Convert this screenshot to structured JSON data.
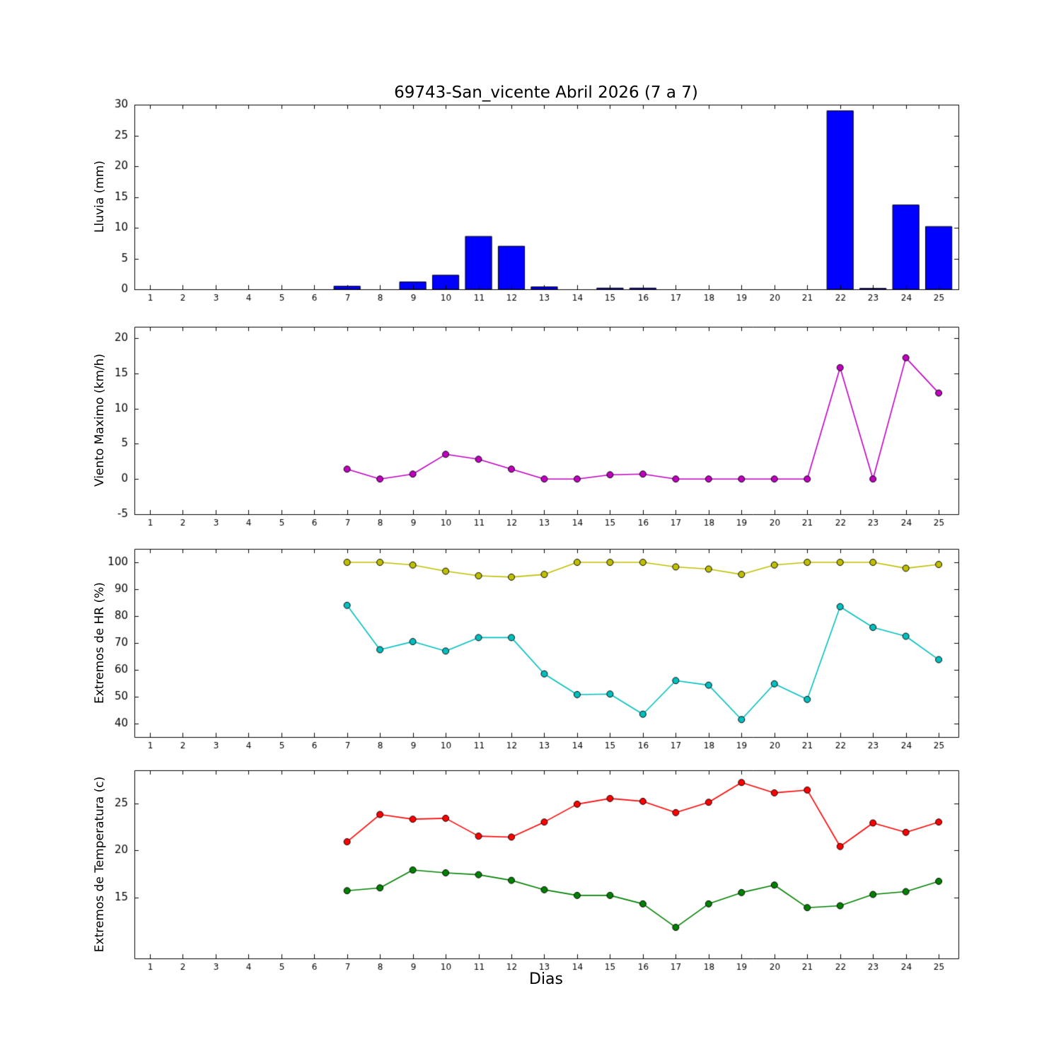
{
  "figure": {
    "title": "69743-San_vicente Abril 2026  (7 a 7)",
    "xlabel": "Dias"
  },
  "chart_data": [
    {
      "name": "lluvia",
      "type": "bar",
      "ylabel": "Lluvia (mm)",
      "xlim": [
        0.53,
        25.6
      ],
      "ylim": [
        0,
        30
      ],
      "xticks": [
        1,
        2,
        3,
        4,
        5,
        6,
        7,
        8,
        9,
        10,
        11,
        12,
        13,
        14,
        15,
        16,
        17,
        18,
        19,
        20,
        21,
        22,
        23,
        24,
        25
      ],
      "yticks": [
        0,
        5,
        10,
        15,
        20,
        25,
        30
      ],
      "x": [
        7,
        8,
        9,
        10,
        11,
        12,
        13,
        14,
        15,
        16,
        17,
        18,
        19,
        20,
        21,
        22,
        23,
        24,
        25
      ],
      "series": [
        {
          "name": "lluvia_mm",
          "color": "#0000ff",
          "values": [
            0.5,
            0,
            1.2,
            2.3,
            8.6,
            7.0,
            0.4,
            0,
            0.2,
            0.2,
            0,
            0,
            0,
            0,
            0,
            29.0,
            0.15,
            13.7,
            10.2
          ]
        }
      ]
    },
    {
      "name": "viento",
      "type": "line",
      "ylabel": "Viento Maximo (km/h)",
      "xlim": [
        0.53,
        25.6
      ],
      "ylim": [
        -5,
        21.6
      ],
      "xticks": [
        1,
        2,
        3,
        4,
        5,
        6,
        7,
        8,
        9,
        10,
        11,
        12,
        13,
        14,
        15,
        16,
        17,
        18,
        19,
        20,
        21,
        22,
        23,
        24,
        25
      ],
      "yticks": [
        -5,
        0,
        5,
        10,
        15,
        20
      ],
      "x": [
        7,
        8,
        9,
        10,
        11,
        12,
        13,
        14,
        15,
        16,
        17,
        18,
        19,
        20,
        21,
        22,
        23,
        24,
        25
      ],
      "series": [
        {
          "name": "viento_maximo",
          "color": "#bf00bf",
          "values": [
            1.4,
            0,
            0.7,
            3.5,
            2.8,
            1.4,
            0,
            0,
            0.6,
            0.7,
            0,
            0,
            0,
            0,
            0,
            15.8,
            0,
            17.2,
            12.2
          ]
        }
      ]
    },
    {
      "name": "hr",
      "type": "line",
      "ylabel": "Extremos de HR (%)",
      "xlim": [
        0.53,
        25.6
      ],
      "ylim": [
        35,
        105
      ],
      "xticks": [
        1,
        2,
        3,
        4,
        5,
        6,
        7,
        8,
        9,
        10,
        11,
        12,
        13,
        14,
        15,
        16,
        17,
        18,
        19,
        20,
        21,
        22,
        23,
        24,
        25
      ],
      "yticks": [
        40,
        50,
        60,
        70,
        80,
        90,
        100
      ],
      "x": [
        7,
        8,
        9,
        10,
        11,
        12,
        13,
        14,
        15,
        16,
        17,
        18,
        19,
        20,
        21,
        22,
        23,
        24,
        25
      ],
      "series": [
        {
          "name": "hr_maxima",
          "color": "#bfbf00",
          "values": [
            100,
            100,
            99,
            96.7,
            95,
            94.5,
            95.5,
            100,
            100,
            100,
            98.3,
            97.5,
            95.5,
            99,
            100,
            100,
            100,
            97.8,
            99.2
          ]
        },
        {
          "name": "hr_minima",
          "color": "#00bfbf",
          "values": [
            84,
            67.5,
            70.5,
            67,
            72,
            72,
            58.5,
            50.8,
            51,
            43.5,
            56,
            54.3,
            41.5,
            54.8,
            49,
            83.5,
            75.8,
            72.5,
            63.8
          ]
        }
      ]
    },
    {
      "name": "temperatura",
      "type": "line",
      "ylabel": "Extremos de Temperatura (c)",
      "xlim": [
        0.53,
        25.6
      ],
      "ylim": [
        8.5,
        28.5
      ],
      "xticks": [
        1,
        2,
        3,
        4,
        5,
        6,
        7,
        8,
        9,
        10,
        11,
        12,
        13,
        14,
        15,
        16,
        17,
        18,
        19,
        20,
        21,
        22,
        23,
        24,
        25
      ],
      "yticks": [
        15,
        20,
        25
      ],
      "x": [
        7,
        8,
        9,
        10,
        11,
        12,
        13,
        14,
        15,
        16,
        17,
        18,
        19,
        20,
        21,
        22,
        23,
        24,
        25
      ],
      "series": [
        {
          "name": "temperatura_maxima",
          "color": "#ff0000",
          "values": [
            20.9,
            23.8,
            23.3,
            23.4,
            21.5,
            21.4,
            23.0,
            24.9,
            25.5,
            25.2,
            24.0,
            25.1,
            27.2,
            26.1,
            26.4,
            20.4,
            22.9,
            21.9,
            23.0
          ]
        },
        {
          "name": "temperatura_minima",
          "color": "#008000",
          "values": [
            15.7,
            16.0,
            17.9,
            17.6,
            17.4,
            16.8,
            15.8,
            15.2,
            15.2,
            14.3,
            11.8,
            14.3,
            15.5,
            16.3,
            13.9,
            14.1,
            15.3,
            15.6,
            16.7
          ]
        }
      ]
    }
  ]
}
